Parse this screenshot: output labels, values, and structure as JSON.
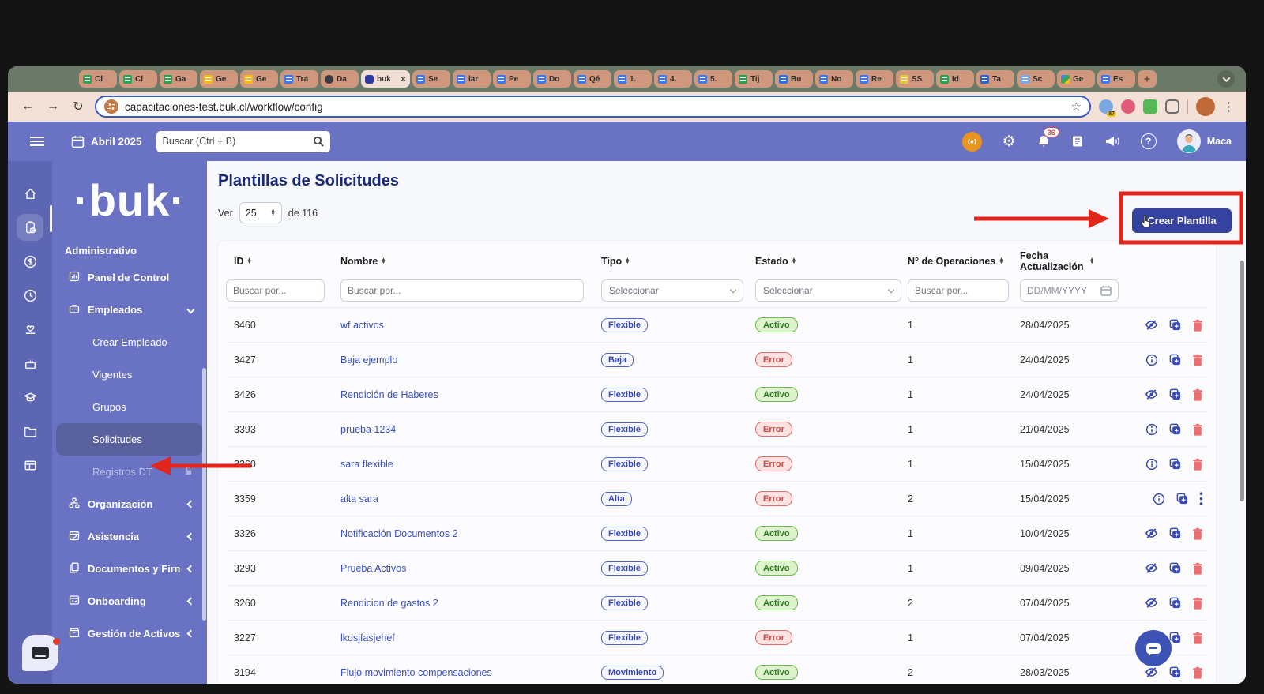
{
  "browser": {
    "tabs": [
      {
        "label": "Cl",
        "icon": "sheets"
      },
      {
        "label": "Cl",
        "icon": "sheets"
      },
      {
        "label": "Ga",
        "icon": "sheets"
      },
      {
        "label": "Ge",
        "icon": "slides"
      },
      {
        "label": "Ge",
        "icon": "slides"
      },
      {
        "label": "Tra",
        "icon": "docs"
      },
      {
        "label": "Da",
        "icon": "dark"
      },
      {
        "label": "buk",
        "icon": "buk",
        "active": true
      },
      {
        "label": "Se",
        "icon": "docs"
      },
      {
        "label": "lar",
        "icon": "docs"
      },
      {
        "label": "Pe",
        "icon": "docs"
      },
      {
        "label": "Do",
        "icon": "docs"
      },
      {
        "label": "Qé",
        "icon": "docs"
      },
      {
        "label": "1.",
        "icon": "docs"
      },
      {
        "label": "4.",
        "icon": "docs"
      },
      {
        "label": "5.",
        "icon": "docs"
      },
      {
        "label": "Tij",
        "icon": "sheets"
      },
      {
        "label": "Bu",
        "icon": "blue"
      },
      {
        "label": "No",
        "icon": "docs"
      },
      {
        "label": "Re",
        "icon": "docs"
      },
      {
        "label": "SS",
        "icon": "book"
      },
      {
        "label": "Id",
        "icon": "sheets"
      },
      {
        "label": "Ta",
        "icon": "flash"
      },
      {
        "label": "Sc",
        "icon": "cal"
      },
      {
        "label": "Ge",
        "icon": "drive"
      },
      {
        "label": "Es",
        "icon": "docs"
      }
    ],
    "new_tab_label": "+",
    "back": "←",
    "forward": "→",
    "reload": "↻",
    "url": "capacitaciones-test.buk.cl/workflow/config",
    "bookmark_star": "☆",
    "extension_badge": "87",
    "menu_dots": "⋮"
  },
  "topnav": {
    "date": "Abril 2025",
    "search_placeholder": "Buscar (Ctrl + B)",
    "notification_count": "36",
    "gear": "⚙",
    "help": "?",
    "user_name": "Maca"
  },
  "sidebar": {
    "brand": "·buk·",
    "section_label": "Administrativo",
    "rail_icons": [
      "home",
      "requests",
      "payments",
      "time",
      "benefits",
      "celebrations",
      "training",
      "files",
      "boards"
    ],
    "items": [
      {
        "label": "Panel de Control",
        "icon": "panel",
        "level": 0
      },
      {
        "label": "Empleados",
        "icon": "empleados",
        "level": 0,
        "chevron": "down"
      },
      {
        "label": "Crear Empleado",
        "level": 1
      },
      {
        "label": "Vigentes",
        "level": 1
      },
      {
        "label": "Grupos",
        "level": 1
      },
      {
        "label": "Solicitudes",
        "level": 1,
        "selected": true
      },
      {
        "label": "Registros DT",
        "level": 1,
        "disabled": true,
        "lock": true
      },
      {
        "label": "Organización",
        "icon": "org",
        "level": 0,
        "chevron": "left"
      },
      {
        "label": "Asistencia",
        "icon": "asistencia",
        "level": 0,
        "chevron": "left"
      },
      {
        "label": "Documentos y Firma",
        "icon": "docsfirma",
        "level": 0,
        "chevron": "left"
      },
      {
        "label": "Onboarding",
        "icon": "onboarding",
        "level": 0,
        "chevron": "left"
      },
      {
        "label": "Gestión de Activos",
        "icon": "activos",
        "level": 0,
        "chevron": "left"
      }
    ]
  },
  "main": {
    "title": "Plantillas de Solicitudes",
    "pager": {
      "ver": "Ver",
      "size": "25",
      "total": "de 116"
    },
    "create_button": "Crear Plantilla",
    "table": {
      "columns": [
        "ID",
        "Nombre",
        "Tipo",
        "Estado",
        "N° de Operaciones",
        "Fecha Actualización"
      ],
      "filters": {
        "id": "Buscar por...",
        "nombre": "Buscar por...",
        "tipo": "Seleccionar",
        "estado": "Seleccionar",
        "operaciones": "Buscar por...",
        "fecha": "DD/MM/YYYY"
      },
      "rows": [
        {
          "id": "3460",
          "nombre": "wf activos",
          "tipo": "Flexible",
          "estado": "Activo",
          "operaciones": "1",
          "fecha": "28/04/2025",
          "action": "eye-off",
          "last": "trash"
        },
        {
          "id": "3427",
          "nombre": "Baja ejemplo",
          "tipo": "Baja",
          "estado": "Error",
          "operaciones": "1",
          "fecha": "24/04/2025",
          "action": "info",
          "last": "trash"
        },
        {
          "id": "3426",
          "nombre": "Rendición de Haberes",
          "tipo": "Flexible",
          "estado": "Activo",
          "operaciones": "1",
          "fecha": "24/04/2025",
          "action": "eye-off",
          "last": "trash"
        },
        {
          "id": "3393",
          "nombre": "prueba 1234",
          "tipo": "Flexible",
          "estado": "Error",
          "operaciones": "1",
          "fecha": "21/04/2025",
          "action": "info",
          "last": "trash"
        },
        {
          "id": "3360",
          "nombre": "sara flexible",
          "tipo": "Flexible",
          "estado": "Error",
          "operaciones": "1",
          "fecha": "15/04/2025",
          "action": "info",
          "last": "trash"
        },
        {
          "id": "3359",
          "nombre": "alta sara",
          "tipo": "Alta",
          "estado": "Error",
          "operaciones": "2",
          "fecha": "15/04/2025",
          "action": "info",
          "last": "kebab"
        },
        {
          "id": "3326",
          "nombre": "Notificación Documentos 2",
          "tipo": "Flexible",
          "estado": "Activo",
          "operaciones": "1",
          "fecha": "10/04/2025",
          "action": "eye-off",
          "last": "trash"
        },
        {
          "id": "3293",
          "nombre": "Prueba Activos",
          "tipo": "Flexible",
          "estado": "Activo",
          "operaciones": "1",
          "fecha": "09/04/2025",
          "action": "eye-off",
          "last": "trash"
        },
        {
          "id": "3260",
          "nombre": "Rendicion de gastos 2",
          "tipo": "Flexible",
          "estado": "Activo",
          "operaciones": "2",
          "fecha": "07/04/2025",
          "action": "eye-off",
          "last": "trash"
        },
        {
          "id": "3227",
          "nombre": "lkdsjfasjehef",
          "tipo": "Flexible",
          "estado": "Error",
          "operaciones": "1",
          "fecha": "07/04/2025",
          "action": "info",
          "last": "trash"
        },
        {
          "id": "3194",
          "nombre": "Flujo movimiento compensaciones",
          "tipo": "Movimiento",
          "estado": "Activo",
          "operaciones": "2",
          "fecha": "28/03/2025",
          "action": "eye-off",
          "last": "trash"
        }
      ]
    }
  },
  "colors": {
    "annotation_red": "#e2261b",
    "brand_navy": "#3642a0",
    "nav_purple": "#6a72c3",
    "estado_activo_text": "#2e7d1e",
    "estado_error_text": "#d64545",
    "link_blue": "#3a50c2",
    "tabbar_green": "#6b7a68",
    "tab_salmon": "#cf977b"
  }
}
